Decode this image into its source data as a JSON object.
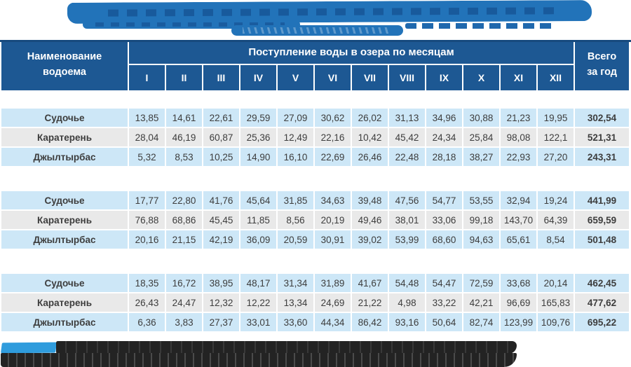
{
  "colors": {
    "header_bg": "#1d5893",
    "header_top_border": "#174a7e",
    "row_blue": "#cde7f7",
    "row_gray": "#e9e9e9",
    "banner_highlight": "#2273b9",
    "caption_highlight": "#2f9cdd",
    "redaction": "#232323"
  },
  "banner": {
    "obscured": true
  },
  "caption": {
    "obscured": true
  },
  "header": {
    "name_col": "Наименование\nводоема",
    "months_title": "Поступление воды в озера по месяцам",
    "months": [
      "I",
      "II",
      "III",
      "IV",
      "V",
      "VI",
      "VII",
      "VIII",
      "IX",
      "X",
      "XI",
      "XII"
    ],
    "total_col": "Всего\nза год"
  },
  "groups": [
    {
      "rows": [
        {
          "name": "Судочье",
          "values": [
            "13,85",
            "14,61",
            "22,61",
            "29,59",
            "27,09",
            "30,62",
            "26,02",
            "31,13",
            "34,96",
            "30,88",
            "21,23",
            "19,95"
          ],
          "total": "302,54"
        },
        {
          "name": "Каратерень",
          "values": [
            "28,04",
            "46,19",
            "60,87",
            "25,36",
            "12,49",
            "22,16",
            "10,42",
            "45,42",
            "24,34",
            "25,84",
            "98,08",
            "122,1"
          ],
          "total": "521,31"
        },
        {
          "name": "Джылтырбас",
          "values": [
            "5,32",
            "8,53",
            "10,25",
            "14,90",
            "16,10",
            "22,69",
            "26,46",
            "22,48",
            "28,18",
            "38,27",
            "22,93",
            "27,20"
          ],
          "total": "243,31"
        }
      ]
    },
    {
      "rows": [
        {
          "name": "Судочье",
          "values": [
            "17,77",
            "22,80",
            "41,76",
            "45,64",
            "31,85",
            "34,63",
            "39,48",
            "47,56",
            "54,77",
            "53,55",
            "32,94",
            "19,24"
          ],
          "total": "441,99"
        },
        {
          "name": "Каратерень",
          "values": [
            "76,88",
            "68,86",
            "45,45",
            "11,85",
            "8,56",
            "20,19",
            "49,46",
            "38,01",
            "33,06",
            "99,18",
            "143,70",
            "64,39"
          ],
          "total": "659,59"
        },
        {
          "name": "Джылтырбас",
          "values": [
            "20,16",
            "21,15",
            "42,19",
            "36,09",
            "20,59",
            "30,91",
            "39,02",
            "53,99",
            "68,60",
            "94,63",
            "65,61",
            "8,54"
          ],
          "total": "501,48"
        }
      ]
    },
    {
      "rows": [
        {
          "name": "Судочье",
          "values": [
            "18,35",
            "16,72",
            "38,95",
            "48,17",
            "31,34",
            "31,89",
            "41,67",
            "54,48",
            "54,47",
            "72,59",
            "33,68",
            "20,14"
          ],
          "total": "462,45"
        },
        {
          "name": "Каратерень",
          "values": [
            "26,43",
            "24,47",
            "12,32",
            "12,22",
            "13,34",
            "24,69",
            "21,22",
            "4,98",
            "33,22",
            "42,21",
            "96,69",
            "165,83"
          ],
          "total": "477,62"
        },
        {
          "name": "Джылтырбас",
          "values": [
            "6,36",
            "3,83",
            "27,37",
            "33,01",
            "33,60",
            "44,34",
            "86,42",
            "93,16",
            "50,64",
            "82,74",
            "123,99",
            "109,76"
          ],
          "total": "695,22"
        }
      ]
    }
  ]
}
